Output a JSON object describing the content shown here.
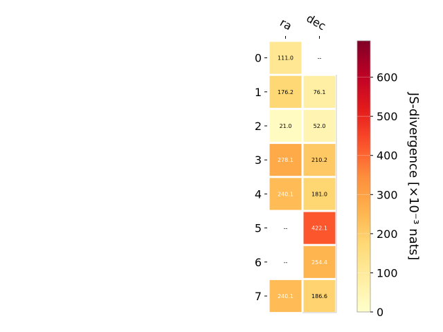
{
  "chart_data": {
    "type": "heatmap",
    "columns": [
      "ra",
      "dec"
    ],
    "rows": [
      "0",
      "1",
      "2",
      "3",
      "4",
      "5",
      "6",
      "7"
    ],
    "values": [
      [
        111.0,
        null
      ],
      [
        176.2,
        76.1
      ],
      [
        21.0,
        52.0
      ],
      [
        278.1,
        210.2
      ],
      [
        240.1,
        181.0
      ],
      [
        null,
        422.1
      ],
      [
        null,
        254.4
      ],
      [
        240.1,
        186.6
      ]
    ],
    "cell_labels": [
      [
        "111.0",
        "--"
      ],
      [
        "176.2",
        "76.1"
      ],
      [
        "21.0",
        "52.0"
      ],
      [
        "278.1",
        "210.2"
      ],
      [
        "240.1",
        "181.0"
      ],
      [
        "--",
        "422.1"
      ],
      [
        "--",
        "254.4"
      ],
      [
        "240.1",
        "186.6"
      ]
    ],
    "colorbar": {
      "label": "JS-divergence [×10⁻³ nats]",
      "ticks": [
        "0",
        "100",
        "200",
        "300",
        "400",
        "500",
        "600"
      ],
      "tick_values": [
        0,
        100,
        200,
        300,
        400,
        500,
        600
      ],
      "vmin": 0,
      "vmax": 693,
      "colormap": "YlOrRd"
    }
  }
}
